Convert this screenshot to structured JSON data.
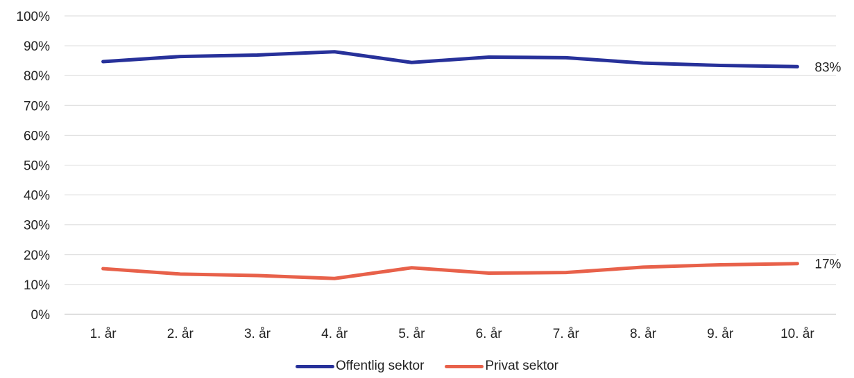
{
  "chart_data": {
    "type": "line",
    "title": "",
    "xlabel": "",
    "ylabel": "",
    "categories": [
      "1. år",
      "2. år",
      "3. år",
      "4. år",
      "5. år",
      "6. år",
      "7. år",
      "8. år",
      "9. år",
      "10. år"
    ],
    "y_ticks": [
      "0%",
      "10%",
      "20%",
      "30%",
      "40%",
      "50%",
      "60%",
      "70%",
      "80%",
      "90%",
      "100%"
    ],
    "ylim": [
      0,
      100
    ],
    "grid": true,
    "legend_position": "bottom",
    "series": [
      {
        "name": "Offentlig sektor",
        "color": "#27319A",
        "values": [
          84.7,
          86.4,
          86.9,
          88.0,
          84.4,
          86.2,
          86.0,
          84.2,
          83.4,
          83.0
        ],
        "end_label": "83%"
      },
      {
        "name": "Privat sektor",
        "color": "#E8614A",
        "values": [
          15.3,
          13.5,
          13.0,
          12.0,
          15.6,
          13.8,
          14.0,
          15.8,
          16.6,
          17.0
        ],
        "end_label": "17%"
      }
    ]
  }
}
